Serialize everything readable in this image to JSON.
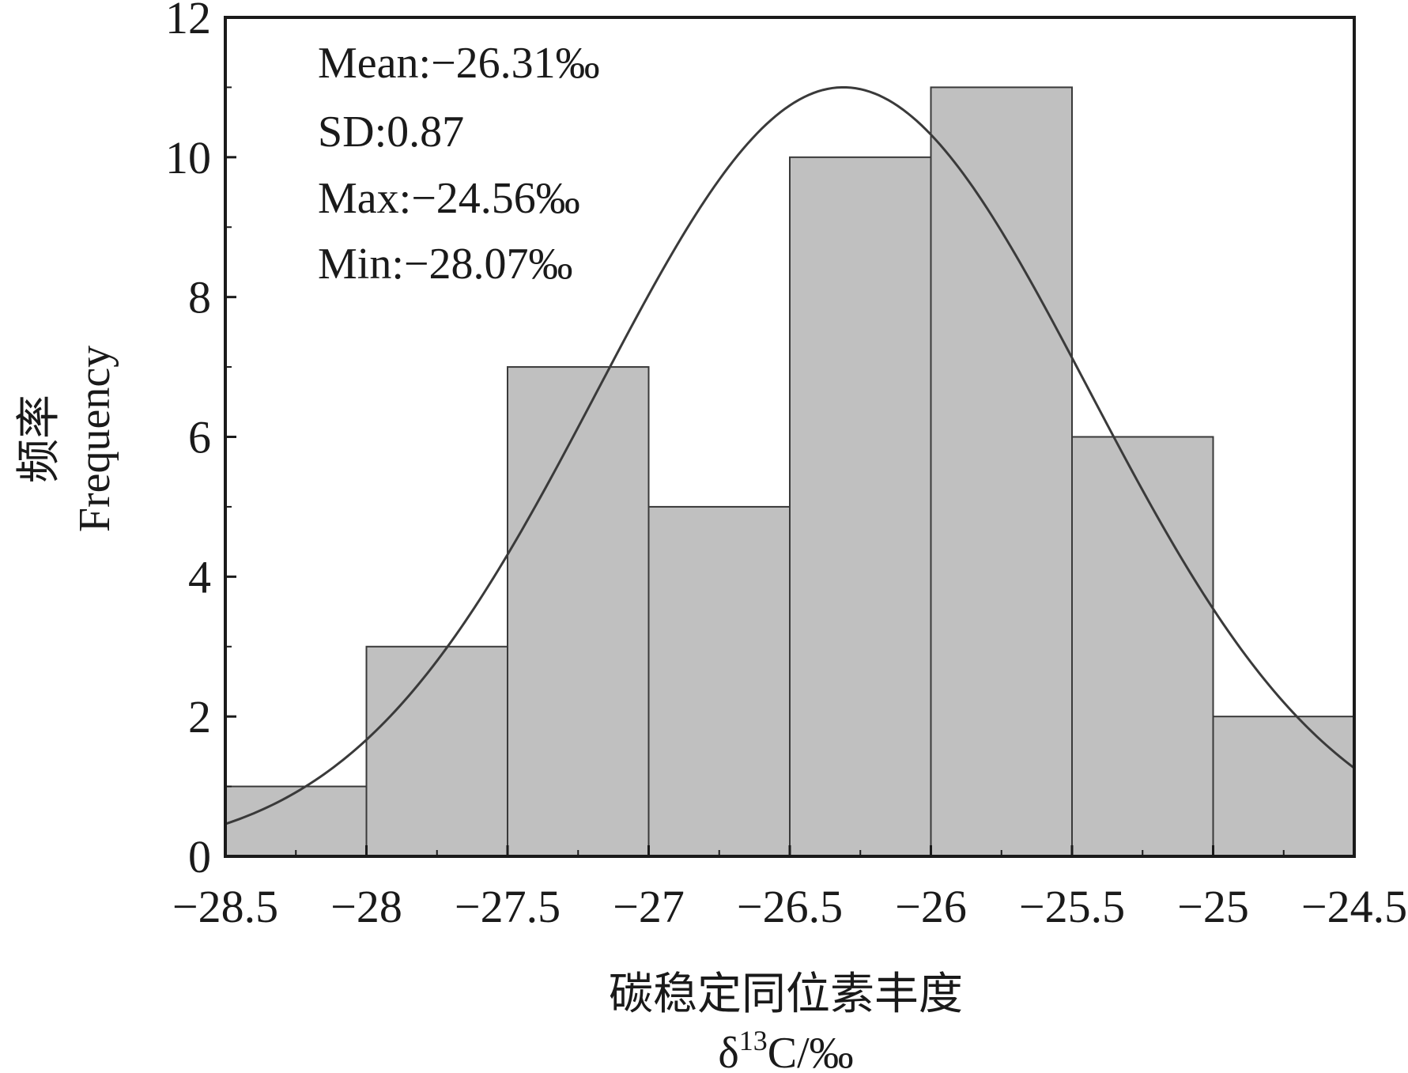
{
  "chart_data": {
    "type": "bar",
    "subtype": "histogram-with-normal-curve",
    "bin_edges": [
      -28.5,
      -28,
      -27.5,
      -27,
      -26.5,
      -26,
      -25.5,
      -25,
      -24.5
    ],
    "values": [
      1,
      3,
      7,
      5,
      10,
      11,
      6,
      2
    ],
    "curve": {
      "kind": "normal",
      "peak_x": -26.31,
      "peak_y": 11
    },
    "xlim": [
      -28.5,
      -24.5
    ],
    "ylim": [
      0,
      12
    ],
    "x_ticks": [
      "−28.5",
      "−28",
      "−27.5",
      "−27",
      "−26.5",
      "−26",
      "−25.5",
      "−25",
      "−24.5"
    ],
    "y_ticks": [
      "0",
      "2",
      "4",
      "6",
      "8",
      "10",
      "12"
    ],
    "x_tick_values": [
      -28.5,
      -28,
      -27.5,
      -27,
      -26.5,
      -26,
      -25.5,
      -25,
      -24.5
    ],
    "y_tick_values": [
      0,
      2,
      4,
      6,
      8,
      10,
      12
    ],
    "xlabel_line1": "碳稳定同位素丰度",
    "xlabel_delta": "δ",
    "xlabel_sup": "13",
    "xlabel_unit": "C/‰",
    "ylabel_line1": "频率",
    "ylabel_line2": "Frequency",
    "stats": [
      "Mean:−26.31‰",
      "SD:0.87",
      "Max:−24.56‰",
      "Min:−28.07‰"
    ],
    "grid": false,
    "bar_color": "#c0c0c0",
    "bar_edge_color": "#3a3a3a",
    "curve_color": "#3a3a3a",
    "frame_color": "#1a1a1a"
  }
}
